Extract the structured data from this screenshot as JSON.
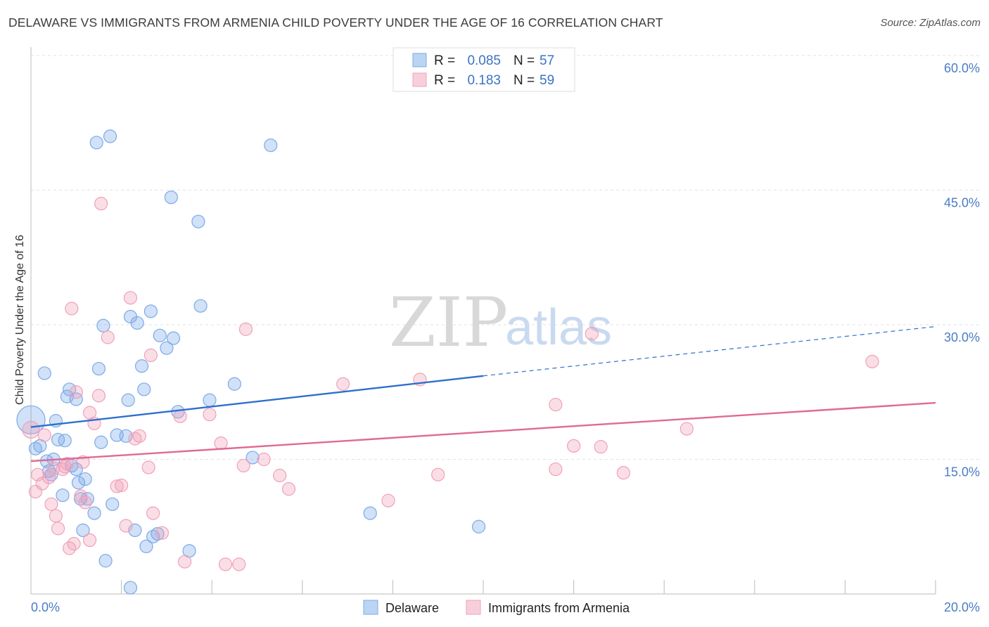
{
  "title": "DELAWARE VS IMMIGRANTS FROM ARMENIA CHILD POVERTY UNDER THE AGE OF 16 CORRELATION CHART",
  "source": "Source: ZipAtlas.com",
  "watermark": {
    "zip": "ZIP",
    "atlas": "atlas"
  },
  "chart_data": {
    "type": "scatter",
    "ylabel": "Child Poverty Under the Age of 16",
    "xlim": [
      0,
      20
    ],
    "ylim": [
      0,
      60
    ],
    "y_ticks": [
      {
        "value": 15,
        "label": "15.0%"
      },
      {
        "value": 30,
        "label": "30.0%"
      },
      {
        "value": 45,
        "label": "45.0%"
      },
      {
        "value": 60,
        "label": "60.0%"
      }
    ],
    "x_ticks": [
      {
        "value": 0,
        "label": "0.0%"
      },
      {
        "value": 20,
        "label": "20.0%"
      }
    ],
    "legend": [
      {
        "r_label": "R =",
        "r_value": "0.085",
        "n_label": "N =",
        "n_value": "57",
        "color": "#7aaae8"
      },
      {
        "r_label": "R =",
        "r_value": "0.183",
        "n_label": "N =",
        "n_value": "59",
        "color": "#f0a0b8"
      }
    ],
    "series": [
      {
        "name": "Delaware",
        "color": "#7aaae8",
        "trend": {
          "x0": 0,
          "y0": 18.6,
          "x1": 10.0,
          "y1": 24.3,
          "dash_to": 20.0,
          "dash_y": 29.8,
          "color": "#2e6fcc"
        },
        "points": [
          [
            0.0,
            19.4,
            20
          ],
          [
            0.1,
            16.2,
            9
          ],
          [
            0.2,
            16.5,
            9
          ],
          [
            0.3,
            24.6,
            9
          ],
          [
            0.35,
            14.8,
            9
          ],
          [
            0.4,
            13.7,
            9
          ],
          [
            0.5,
            15.0,
            9
          ],
          [
            0.55,
            19.3,
            9
          ],
          [
            0.6,
            17.2,
            9
          ],
          [
            0.7,
            11.0,
            9
          ],
          [
            0.75,
            17.1,
            9
          ],
          [
            0.8,
            22.0,
            9
          ],
          [
            0.85,
            22.8,
            9
          ],
          [
            0.9,
            14.3,
            9
          ],
          [
            1.0,
            21.7,
            9
          ],
          [
            1.05,
            12.4,
            9
          ],
          [
            1.1,
            10.6,
            9
          ],
          [
            1.15,
            7.1,
            9
          ],
          [
            1.2,
            12.8,
            9
          ],
          [
            1.25,
            10.6,
            9
          ],
          [
            1.4,
            9.0,
            9
          ],
          [
            1.45,
            50.3,
            9
          ],
          [
            1.5,
            25.1,
            9
          ],
          [
            1.55,
            16.9,
            9
          ],
          [
            1.6,
            29.9,
            9
          ],
          [
            1.65,
            3.7,
            9
          ],
          [
            1.75,
            51.0,
            9
          ],
          [
            1.8,
            10.0,
            9
          ],
          [
            1.9,
            17.7,
            9
          ],
          [
            2.1,
            17.6,
            9
          ],
          [
            2.15,
            21.6,
            9
          ],
          [
            2.2,
            30.9,
            9
          ],
          [
            2.2,
            0.7,
            9
          ],
          [
            2.3,
            7.1,
            9
          ],
          [
            2.35,
            30.2,
            9
          ],
          [
            2.45,
            25.4,
            9
          ],
          [
            2.5,
            22.8,
            9
          ],
          [
            2.55,
            5.3,
            9
          ],
          [
            2.65,
            31.5,
            9
          ],
          [
            2.7,
            6.4,
            9
          ],
          [
            2.8,
            6.7,
            9
          ],
          [
            2.85,
            28.8,
            9
          ],
          [
            3.0,
            27.4,
            9
          ],
          [
            3.1,
            44.2,
            9
          ],
          [
            3.15,
            28.5,
            9
          ],
          [
            3.25,
            20.3,
            9
          ],
          [
            3.5,
            4.8,
            9
          ],
          [
            3.7,
            41.5,
            9
          ],
          [
            3.75,
            32.1,
            9
          ],
          [
            3.95,
            21.6,
            9
          ],
          [
            4.5,
            23.4,
            9
          ],
          [
            4.9,
            15.2,
            9
          ],
          [
            5.3,
            50.0,
            9
          ],
          [
            7.5,
            9.0,
            9
          ],
          [
            9.9,
            7.5,
            9
          ],
          [
            1.0,
            13.9,
            9
          ],
          [
            0.45,
            13.3,
            9
          ]
        ]
      },
      {
        "name": "Immigrants from Armenia",
        "color": "#f0a0b8",
        "trend": {
          "x0": 0,
          "y0": 14.8,
          "x1": 20.0,
          "y1": 21.3,
          "color": "#e06a92"
        },
        "points": [
          [
            0.0,
            18.3,
            12
          ],
          [
            0.1,
            11.4,
            9
          ],
          [
            0.15,
            13.3,
            9
          ],
          [
            0.25,
            12.3,
            9
          ],
          [
            0.3,
            17.7,
            9
          ],
          [
            0.4,
            13.0,
            9
          ],
          [
            0.45,
            10.0,
            9
          ],
          [
            0.5,
            14.0,
            9
          ],
          [
            0.55,
            8.7,
            9
          ],
          [
            0.6,
            7.3,
            9
          ],
          [
            0.7,
            13.9,
            9
          ],
          [
            0.75,
            14.2,
            9
          ],
          [
            0.8,
            14.5,
            9
          ],
          [
            0.85,
            5.1,
            9
          ],
          [
            0.9,
            31.8,
            9
          ],
          [
            0.95,
            5.6,
            9
          ],
          [
            1.0,
            22.5,
            9
          ],
          [
            1.1,
            10.9,
            9
          ],
          [
            1.15,
            14.7,
            9
          ],
          [
            1.2,
            10.2,
            9
          ],
          [
            1.3,
            6.0,
            9
          ],
          [
            1.3,
            20.2,
            9
          ],
          [
            1.4,
            19.0,
            9
          ],
          [
            1.5,
            22.1,
            9
          ],
          [
            1.55,
            43.5,
            9
          ],
          [
            1.7,
            28.6,
            9
          ],
          [
            1.9,
            12.0,
            9
          ],
          [
            2.0,
            12.1,
            9
          ],
          [
            2.1,
            7.6,
            9
          ],
          [
            2.2,
            33.0,
            9
          ],
          [
            2.3,
            17.3,
            9
          ],
          [
            2.4,
            17.6,
            9
          ],
          [
            2.6,
            14.1,
            9
          ],
          [
            2.65,
            26.6,
            9
          ],
          [
            2.7,
            9.0,
            9
          ],
          [
            2.9,
            6.8,
            9
          ],
          [
            3.3,
            19.8,
            9
          ],
          [
            3.4,
            3.6,
            9
          ],
          [
            3.95,
            20.0,
            9
          ],
          [
            4.2,
            16.8,
            9
          ],
          [
            4.3,
            3.3,
            9
          ],
          [
            4.6,
            3.3,
            9
          ],
          [
            4.7,
            14.3,
            9
          ],
          [
            4.75,
            29.5,
            9
          ],
          [
            5.15,
            15.0,
            9
          ],
          [
            5.5,
            13.2,
            9
          ],
          [
            5.7,
            11.7,
            9
          ],
          [
            6.9,
            23.4,
            9
          ],
          [
            7.9,
            10.4,
            9
          ],
          [
            8.6,
            23.9,
            9
          ],
          [
            9.0,
            13.3,
            9
          ],
          [
            11.6,
            21.1,
            9
          ],
          [
            11.6,
            13.9,
            9
          ],
          [
            12.0,
            16.5,
            9
          ],
          [
            12.4,
            29.0,
            9
          ],
          [
            12.6,
            16.4,
            9
          ],
          [
            13.1,
            13.5,
            9
          ],
          [
            14.5,
            18.4,
            9
          ],
          [
            18.6,
            25.9,
            9
          ]
        ]
      }
    ]
  }
}
